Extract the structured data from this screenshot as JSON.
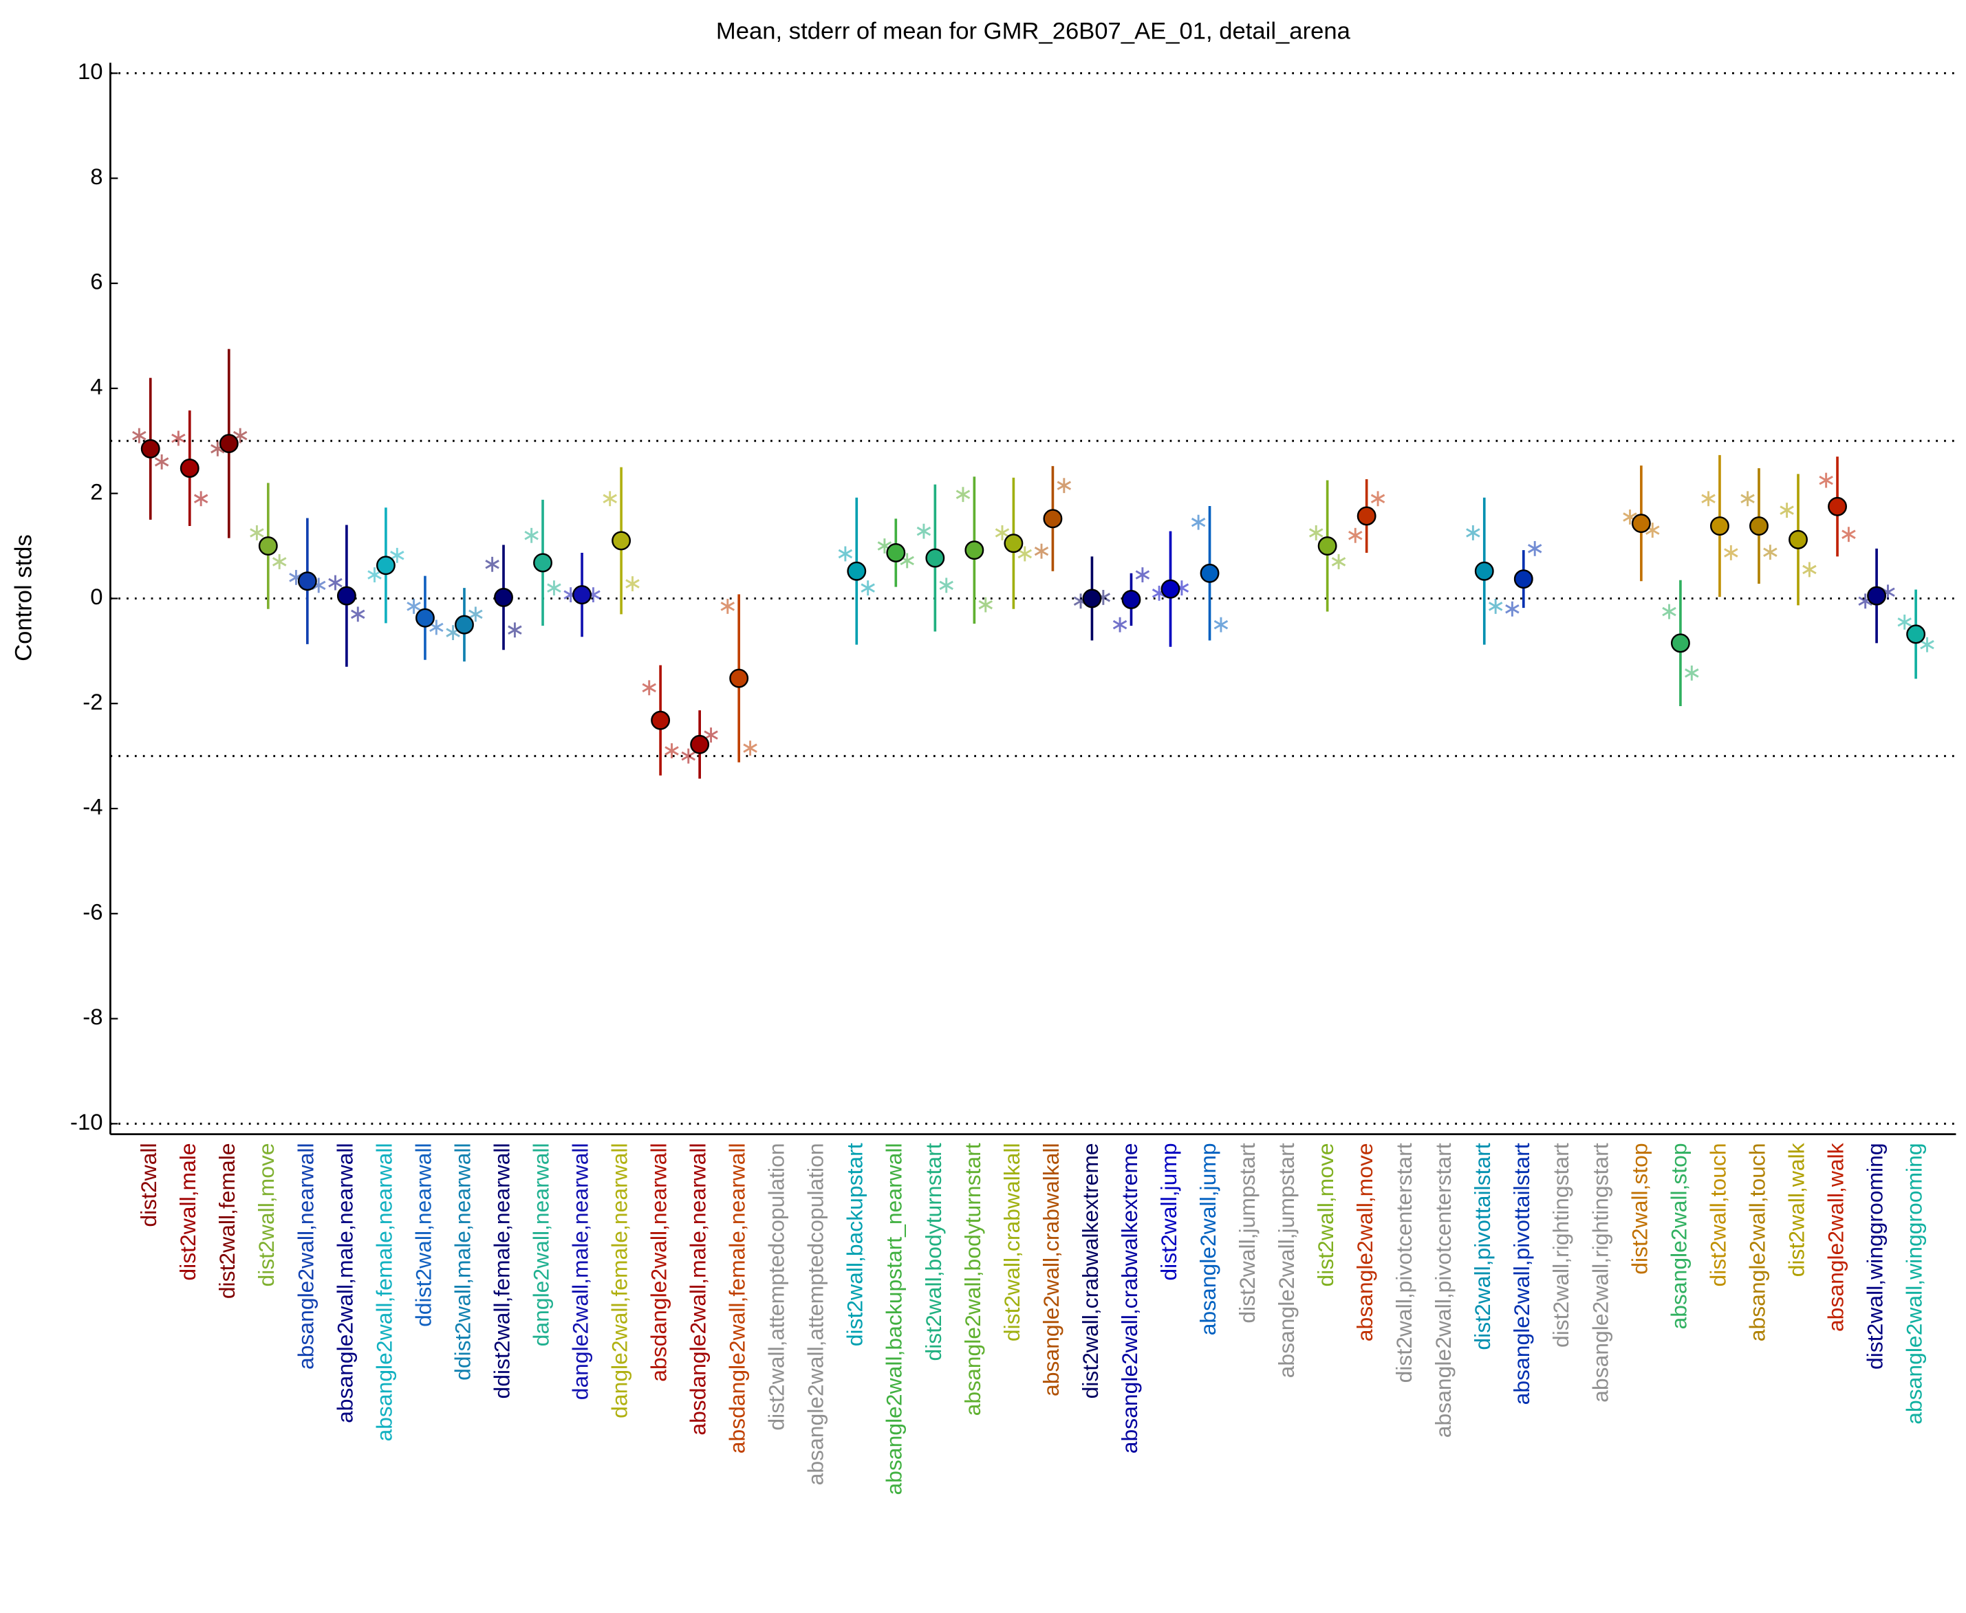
{
  "chart_data": {
    "type": "errorbar",
    "title": "Mean, stderr of mean for GMR_26B07_AE_01, detail_arena",
    "ylabel": "Control stds",
    "ylim": [
      -10.2,
      10.2
    ],
    "yticks": [
      -10,
      -8,
      -6,
      -4,
      -2,
      0,
      2,
      4,
      6,
      8,
      10
    ],
    "reference_lines": [
      -10,
      -3,
      0,
      3,
      10
    ],
    "categories": [
      "dist2wall",
      "dist2wall,male",
      "dist2wall,female",
      "dist2wall,move",
      "absangle2wall,nearwall",
      "absangle2wall,male,nearwall",
      "absangle2wall,female,nearwall",
      "ddist2wall,nearwall",
      "ddist2wall,male,nearwall",
      "ddist2wall,female,nearwall",
      "dangle2wall,nearwall",
      "dangle2wall,male,nearwall",
      "dangle2wall,female,nearwall",
      "absdangle2wall,nearwall",
      "absdangle2wall,male,nearwall",
      "absdangle2wall,female,nearwall",
      "dist2wall,attemptedcopulation",
      "absangle2wall,attemptedcopulation",
      "dist2wall,backupstart",
      "absangle2wall,backupstart_nearwall",
      "dist2wall,bodyturnstart",
      "absangle2wall,bodyturnstart",
      "dist2wall,crabwalkall",
      "absangle2wall,crabwalkall",
      "dist2wall,crabwalkextreme",
      "absangle2wall,crabwalkextreme",
      "dist2wall,jump",
      "absangle2wall,jump",
      "dist2wall,jumpstart",
      "absangle2wall,jumpstart",
      "dist2wall,move",
      "absangle2wall,move",
      "dist2wall,pivotcenterstart",
      "absangle2wall,pivotcenterstart",
      "dist2wall,pivottailstart",
      "absangle2wall,pivottailstart",
      "dist2wall,rightingstart",
      "absangle2wall,rightingstart",
      "dist2wall,stop",
      "absangle2wall,stop",
      "dist2wall,touch",
      "absangle2wall,touch",
      "dist2wall,walk",
      "absangle2wall,walk",
      "dist2wall,winggrooming",
      "absangle2wall,winggrooming"
    ],
    "colors": [
      "#8b0000",
      "#a00000",
      "#800000",
      "#7fb030",
      "#1040b0",
      "#000080",
      "#10b0c0",
      "#1060c0",
      "#1080b0",
      "#000070",
      "#20b090",
      "#1010b0",
      "#b0b010",
      "#b01000",
      "#a00000",
      "#c04000",
      "#909090",
      "#909090",
      "#00a0b0",
      "#40b040",
      "#20b080",
      "#60b030",
      "#a0b010",
      "#b05000",
      "#000060",
      "#0000a0",
      "#0000c0",
      "#0060c0",
      "#909090",
      "#909090",
      "#80b020",
      "#c03000",
      "#909090",
      "#909090",
      "#0090b0",
      "#0030b0",
      "#909090",
      "#909090",
      "#c07000",
      "#30b060",
      "#c09000",
      "#b08000",
      "#b0a000",
      "#c02000",
      "#000080",
      "#10b0a0"
    ],
    "values": [
      2.85,
      2.48,
      2.95,
      1.0,
      0.33,
      0.05,
      0.63,
      -0.37,
      -0.5,
      0.02,
      0.68,
      0.07,
      1.1,
      -2.32,
      -2.78,
      -1.52,
      null,
      null,
      0.52,
      0.87,
      0.77,
      0.92,
      1.05,
      1.52,
      0.0,
      -0.02,
      0.18,
      0.48,
      null,
      null,
      1.0,
      1.57,
      null,
      null,
      0.52,
      0.37,
      null,
      null,
      1.43,
      -0.85,
      1.38,
      1.38,
      1.12,
      1.75,
      0.05,
      -0.68
    ],
    "errors": [
      1.35,
      1.1,
      1.8,
      1.2,
      1.2,
      1.35,
      1.1,
      0.8,
      0.7,
      1.0,
      1.2,
      0.8,
      1.4,
      1.05,
      0.65,
      1.6,
      null,
      null,
      1.4,
      0.65,
      1.4,
      1.4,
      1.25,
      1.0,
      0.8,
      0.5,
      1.1,
      1.28,
      null,
      null,
      1.25,
      0.7,
      null,
      null,
      1.4,
      0.55,
      null,
      null,
      1.1,
      1.2,
      1.35,
      1.1,
      1.25,
      0.95,
      0.9,
      0.85
    ],
    "left_points": [
      3.1,
      3.05,
      2.85,
      1.25,
      0.4,
      0.3,
      0.45,
      -0.15,
      -0.65,
      0.65,
      1.2,
      0.07,
      1.9,
      -1.7,
      -3.0,
      -0.15,
      null,
      null,
      0.85,
      1.0,
      1.28,
      1.98,
      1.25,
      0.9,
      -0.05,
      -0.5,
      0.1,
      1.45,
      null,
      null,
      1.25,
      1.2,
      null,
      null,
      1.25,
      -0.2,
      null,
      null,
      1.55,
      -0.25,
      1.9,
      1.9,
      1.68,
      2.25,
      -0.05,
      -0.45
    ],
    "right_points": [
      2.6,
      1.9,
      3.1,
      0.7,
      0.25,
      -0.3,
      0.82,
      -0.55,
      -0.3,
      -0.6,
      0.2,
      0.07,
      0.28,
      -2.9,
      -2.6,
      -2.85,
      null,
      null,
      0.2,
      0.72,
      0.25,
      -0.12,
      0.85,
      2.15,
      0.02,
      0.45,
      0.2,
      -0.5,
      null,
      null,
      0.7,
      1.9,
      null,
      null,
      -0.15,
      0.95,
      null,
      null,
      1.3,
      -1.42,
      0.87,
      0.88,
      0.55,
      1.22,
      0.12,
      -0.88
    ]
  }
}
